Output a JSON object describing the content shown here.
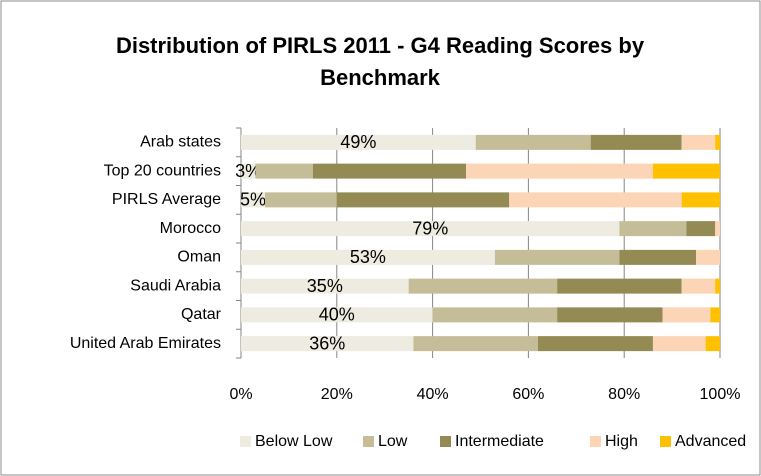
{
  "chart_data": {
    "type": "stacked_bar_horizontal",
    "title": "Distribution of  PIRLS 2011 - G4 Reading Scores by Benchmark",
    "categories": [
      "Arab states",
      "Top 20 countries",
      "PIRLS Average",
      "Morocco",
      "Oman",
      "Saudi Arabia",
      "Qatar",
      "United Arab Emirates"
    ],
    "series": [
      {
        "name": "Below Low",
        "color": "#eeece1",
        "values": [
          49,
          3,
          5,
          79,
          53,
          35,
          40,
          36
        ],
        "value_labels": [
          "49%",
          "3%",
          "5%",
          "79%",
          "53%",
          "35%",
          "40%",
          "36%"
        ]
      },
      {
        "name": "Low",
        "color": "#c4bd97",
        "values": [
          24,
          12,
          15,
          14,
          26,
          31,
          26,
          26
        ]
      },
      {
        "name": "Intermediate",
        "color": "#948a54",
        "values": [
          19,
          32,
          36,
          6,
          16,
          26,
          22,
          24
        ]
      },
      {
        "name": "High",
        "color": "#fbd5b5",
        "values": [
          7,
          39,
          36,
          1,
          5,
          7,
          10,
          11
        ]
      },
      {
        "name": "Advanced",
        "color": "#ffc000",
        "values": [
          1,
          14,
          8,
          0,
          0,
          1,
          2,
          3
        ]
      }
    ],
    "xlim": [
      0,
      100
    ],
    "xticks": [
      {
        "value": 0,
        "label": "0%"
      },
      {
        "value": 20,
        "label": "20%"
      },
      {
        "value": 40,
        "label": "40%"
      },
      {
        "value": 60,
        "label": "60%"
      },
      {
        "value": 80,
        "label": "80%"
      },
      {
        "value": 100,
        "label": "100%"
      }
    ],
    "grid": true,
    "legend": "bottom"
  }
}
